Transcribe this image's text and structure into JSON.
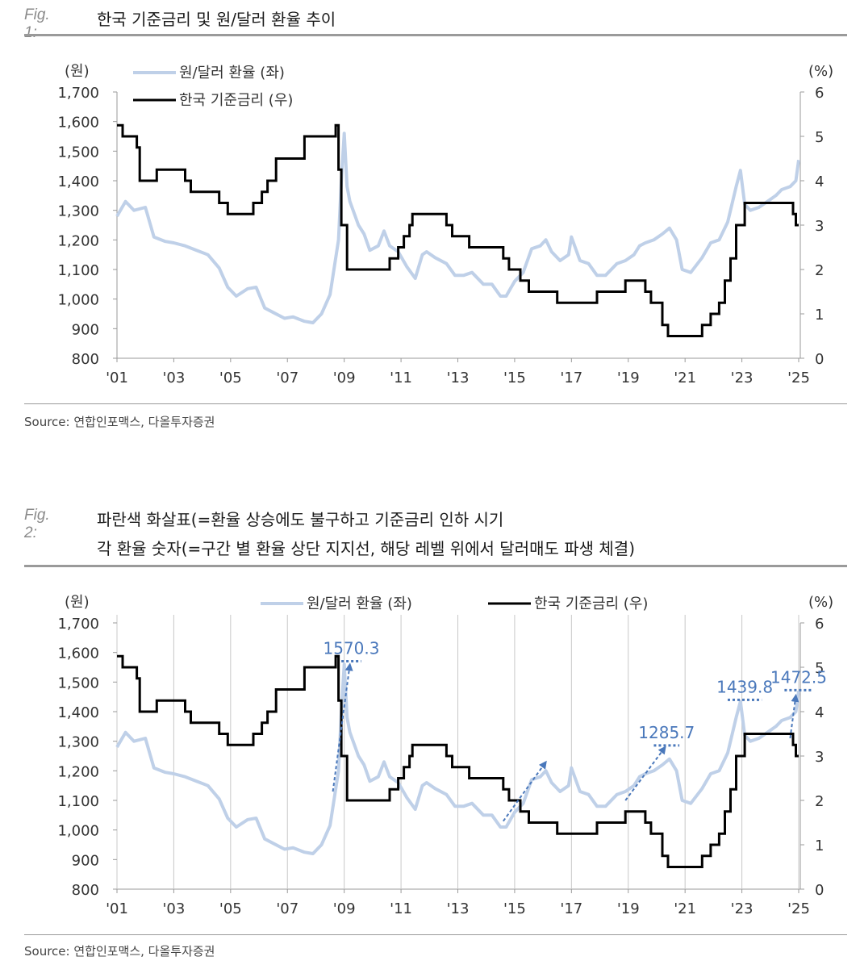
{
  "colors": {
    "fx_line": "#bfd0e8",
    "rate_line": "#000000",
    "arrow": "#4a78bb",
    "rule": "#9a9a9a"
  },
  "fig1": {
    "label": "Fig. 1:",
    "title": "한국 기준금리 및 원/달러 환율 추이",
    "source": "Source: 연합인포맥스, 다올투자증권"
  },
  "fig2": {
    "label": "Fig. 2:",
    "title_line1": "파란색 화살표(=환율 상승에도 불구하고 기준금리 인하 시기",
    "title_line2": "각 환율 숫자(=구간 별 환율 상단 지지선, 해당 레벨 위에서 달러매도 파생 체결)",
    "source": "Source: 연합인포맥스, 다올투자증권"
  },
  "chart_data": [
    {
      "type": "line",
      "left_unit": "(원)",
      "right_unit": "(%)",
      "x_ticks": [
        "'01",
        "'03",
        "'05",
        "'07",
        "'09",
        "'11",
        "'13",
        "'15",
        "'17",
        "'19",
        "'21",
        "'23",
        "'25"
      ],
      "ylim_left": [
        800,
        1700
      ],
      "yticks_left": [
        "800",
        "900",
        "1,000",
        "1,100",
        "1,200",
        "1,300",
        "1,400",
        "1,500",
        "1,600",
        "1,700"
      ],
      "ylim_right": [
        0,
        6
      ],
      "yticks_right": [
        "0",
        "1",
        "2",
        "3",
        "4",
        "5",
        "6"
      ],
      "series": [
        {
          "name": "원/달러 환율 (좌)",
          "axis": "left",
          "x": [
            2001.0,
            2001.3,
            2001.6,
            2002.0,
            2002.3,
            2002.7,
            2003.0,
            2003.4,
            2003.8,
            2004.2,
            2004.6,
            2004.9,
            2005.2,
            2005.6,
            2005.9,
            2006.2,
            2006.5,
            2006.9,
            2007.2,
            2007.6,
            2007.9,
            2008.2,
            2008.5,
            2008.8,
            2008.9,
            2009.0,
            2009.1,
            2009.2,
            2009.35,
            2009.5,
            2009.7,
            2009.9,
            2010.2,
            2010.4,
            2010.6,
            2010.9,
            2011.2,
            2011.5,
            2011.75,
            2011.9,
            2012.2,
            2012.6,
            2012.9,
            2013.2,
            2013.5,
            2013.9,
            2014.2,
            2014.5,
            2014.7,
            2015.0,
            2015.3,
            2015.6,
            2015.9,
            2016.1,
            2016.3,
            2016.6,
            2016.9,
            2017.0,
            2017.3,
            2017.6,
            2017.9,
            2018.2,
            2018.6,
            2018.9,
            2019.2,
            2019.4,
            2019.6,
            2019.9,
            2020.2,
            2020.45,
            2020.7,
            2020.9,
            2021.2,
            2021.6,
            2021.9,
            2022.2,
            2022.5,
            2022.8,
            2022.95,
            2023.1,
            2023.3,
            2023.6,
            2023.9,
            2024.2,
            2024.4,
            2024.7,
            2024.9,
            2025.0
          ],
          "values": [
            1280,
            1330,
            1300,
            1310,
            1210,
            1195,
            1190,
            1180,
            1165,
            1150,
            1105,
            1040,
            1010,
            1035,
            1040,
            970,
            955,
            935,
            940,
            925,
            920,
            950,
            1015,
            1200,
            1400,
            1560,
            1380,
            1330,
            1290,
            1250,
            1220,
            1165,
            1180,
            1230,
            1180,
            1160,
            1110,
            1070,
            1150,
            1160,
            1140,
            1120,
            1080,
            1080,
            1090,
            1050,
            1050,
            1010,
            1010,
            1060,
            1090,
            1170,
            1180,
            1200,
            1160,
            1130,
            1150,
            1210,
            1130,
            1120,
            1080,
            1080,
            1120,
            1130,
            1150,
            1180,
            1190,
            1200,
            1220,
            1240,
            1200,
            1100,
            1090,
            1140,
            1190,
            1200,
            1260,
            1380,
            1435,
            1320,
            1300,
            1310,
            1330,
            1350,
            1370,
            1380,
            1400,
            1470
          ]
        },
        {
          "name": "한국 기준금리 (우)",
          "axis": "right",
          "x": [
            2001.0,
            2001.2,
            2001.7,
            2001.8,
            2002.4,
            2003.4,
            2003.6,
            2004.6,
            2004.9,
            2005.8,
            2006.1,
            2006.3,
            2006.6,
            2007.6,
            2008.7,
            2008.8,
            2008.9,
            2009.1,
            2010.6,
            2010.9,
            2011.1,
            2011.3,
            2011.4,
            2012.6,
            2012.8,
            2013.4,
            2014.6,
            2014.8,
            2015.2,
            2015.5,
            2016.5,
            2017.9,
            2018.9,
            2019.6,
            2019.8,
            2020.2,
            2020.4,
            2021.6,
            2021.9,
            2022.2,
            2022.4,
            2022.6,
            2022.8,
            2023.1,
            2024.8,
            2024.9,
            2025.0
          ],
          "values": [
            5.25,
            5.0,
            4.75,
            4.0,
            4.25,
            4.0,
            3.75,
            3.5,
            3.25,
            3.5,
            3.75,
            4.0,
            4.5,
            5.0,
            5.25,
            4.25,
            3.0,
            2.0,
            2.25,
            2.5,
            2.75,
            3.0,
            3.25,
            3.0,
            2.75,
            2.5,
            2.25,
            2.0,
            1.75,
            1.5,
            1.25,
            1.5,
            1.75,
            1.5,
            1.25,
            0.75,
            0.5,
            0.75,
            1.0,
            1.25,
            1.75,
            2.25,
            3.0,
            3.5,
            3.25,
            3.0,
            3.0
          ]
        }
      ]
    },
    {
      "type": "line",
      "left_unit": "(원)",
      "right_unit": "(%)",
      "x_ticks": [
        "'01",
        "'03",
        "'05",
        "'07",
        "'09",
        "'11",
        "'13",
        "'15",
        "'17",
        "'19",
        "'21",
        "'23",
        "'25"
      ],
      "ylim_left": [
        800,
        1700
      ],
      "yticks_left": [
        "800",
        "900",
        "1,000",
        "1,100",
        "1,200",
        "1,300",
        "1,400",
        "1,500",
        "1,600",
        "1,700"
      ],
      "ylim_right": [
        0,
        6
      ],
      "yticks_right": [
        "0",
        "1",
        "2",
        "3",
        "4",
        "5",
        "6"
      ],
      "series_ref": "same data as fig 1",
      "series_names": [
        "원/달러 환율 (좌)",
        "한국 기준금리 (우)"
      ],
      "vertical_grid": true,
      "annotations": [
        {
          "label": "1570.3",
          "level": 1570.3,
          "x_from": 2008.9,
          "x_to": 2009.6
        },
        {
          "label": "1285.7",
          "level": 1285.7,
          "x_from": 2019.9,
          "x_to": 2020.8
        },
        {
          "label": "1439.8",
          "level": 1439.8,
          "x_from": 2022.5,
          "x_to": 2023.7
        },
        {
          "label": "1472.5",
          "level": 1472.5,
          "x_from": 2024.5,
          "x_to": 2025.5
        }
      ],
      "arrows": [
        {
          "from": [
            2008.6,
            1130
          ],
          "to": [
            2009.2,
            1560
          ]
        },
        {
          "from": [
            2014.6,
            1030
          ],
          "to": [
            2016.1,
            1230
          ]
        },
        {
          "from": [
            2018.9,
            1100
          ],
          "to": [
            2020.3,
            1280
          ]
        },
        {
          "from": [
            2024.7,
            1310
          ],
          "to": [
            2024.9,
            1455
          ]
        }
      ]
    }
  ]
}
